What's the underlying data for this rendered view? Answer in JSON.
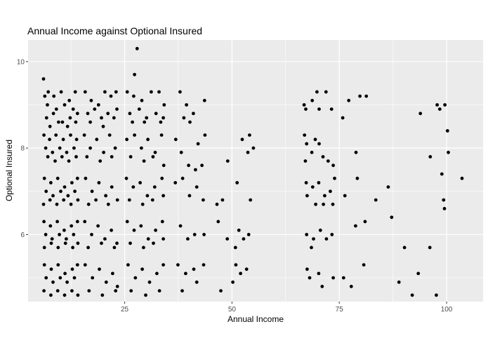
{
  "chart_data": {
    "type": "scatter",
    "title": "Annual Income against Optional Insured",
    "xlabel": "Annual Income",
    "ylabel": "Optional Insured",
    "xlim": [
      2.5,
      108.5
    ],
    "ylim": [
      4.45,
      10.5
    ],
    "x_ticks": [
      25,
      50,
      75,
      100
    ],
    "y_ticks": [
      6,
      8,
      10
    ],
    "grid": true,
    "colors": {
      "panel": "#ebebeb",
      "grid_major": "#ffffff",
      "points": "#000000",
      "text": "#000000",
      "ticks": "#4d4d4d"
    },
    "points": [
      [
        6.1,
        9.6
      ],
      [
        6.4,
        9.2
      ],
      [
        7.2,
        9.3
      ],
      [
        8.5,
        9.2
      ],
      [
        10.2,
        9.3
      ],
      [
        12.1,
        9.1
      ],
      [
        13.5,
        9.3
      ],
      [
        7.0,
        9.0
      ],
      [
        9.1,
        8.9
      ],
      [
        11.0,
        9.0
      ],
      [
        13.0,
        8.9
      ],
      [
        6.8,
        8.7
      ],
      [
        8.4,
        8.8
      ],
      [
        10.5,
        8.6
      ],
      [
        12.3,
        8.7
      ],
      [
        14.0,
        8.8
      ],
      [
        7.6,
        8.5
      ],
      [
        9.6,
        8.6
      ],
      [
        11.7,
        8.5
      ],
      [
        13.6,
        8.6
      ],
      [
        15.8,
        9.3
      ],
      [
        17.2,
        9.1
      ],
      [
        18.9,
        9.0
      ],
      [
        20.4,
        9.3
      ],
      [
        21.8,
        9.2
      ],
      [
        23.0,
        9.3
      ],
      [
        16.4,
        8.8
      ],
      [
        18.0,
        8.9
      ],
      [
        19.6,
        8.7
      ],
      [
        21.1,
        8.8
      ],
      [
        22.5,
        8.7
      ],
      [
        17.0,
        8.6
      ],
      [
        20.0,
        8.5
      ],
      [
        23.2,
        8.9
      ],
      [
        25.6,
        9.3
      ],
      [
        27.1,
        9.2
      ],
      [
        29.0,
        9.1
      ],
      [
        31.2,
        9.3
      ],
      [
        33.0,
        9.3
      ],
      [
        34.2,
        9.0
      ],
      [
        26.2,
        8.8
      ],
      [
        28.4,
        8.9
      ],
      [
        30.1,
        8.7
      ],
      [
        32.3,
        8.8
      ],
      [
        34.0,
        8.7
      ],
      [
        27.3,
        9.7
      ],
      [
        27.9,
        10.3
      ],
      [
        26.8,
        8.6
      ],
      [
        29.6,
        8.6
      ],
      [
        33.4,
        8.6
      ],
      [
        37.9,
        9.3
      ],
      [
        39.4,
        9.0
      ],
      [
        41.0,
        8.8
      ],
      [
        43.6,
        9.1
      ],
      [
        38.8,
        8.7
      ],
      [
        40.2,
        8.6
      ],
      [
        6.2,
        8.3
      ],
      [
        7.5,
        8.2
      ],
      [
        9.0,
        8.3
      ],
      [
        10.7,
        8.2
      ],
      [
        12.4,
        8.3
      ],
      [
        13.8,
        8.2
      ],
      [
        6.6,
        8.0
      ],
      [
        8.2,
        7.9
      ],
      [
        9.9,
        8.0
      ],
      [
        11.5,
        7.9
      ],
      [
        13.2,
        8.0
      ],
      [
        7.1,
        7.8
      ],
      [
        8.8,
        7.7
      ],
      [
        10.4,
        7.8
      ],
      [
        12.0,
        7.7
      ],
      [
        13.7,
        7.8
      ],
      [
        15.6,
        8.3
      ],
      [
        17.0,
        8.0
      ],
      [
        18.5,
        8.2
      ],
      [
        20.1,
        7.9
      ],
      [
        21.5,
        8.3
      ],
      [
        22.8,
        8.0
      ],
      [
        16.2,
        7.8
      ],
      [
        19.3,
        7.7
      ],
      [
        22.0,
        7.8
      ],
      [
        25.5,
        8.2
      ],
      [
        27.3,
        8.3
      ],
      [
        28.9,
        8.0
      ],
      [
        30.4,
        8.2
      ],
      [
        32.1,
        7.9
      ],
      [
        33.6,
        8.3
      ],
      [
        26.4,
        7.8
      ],
      [
        29.5,
        7.7
      ],
      [
        31.6,
        7.8
      ],
      [
        34.1,
        7.6
      ],
      [
        36.9,
        8.2
      ],
      [
        38.2,
        7.9
      ],
      [
        39.9,
        7.6
      ],
      [
        42.1,
        8.1
      ],
      [
        43.7,
        8.3
      ],
      [
        41.5,
        7.5
      ],
      [
        43.0,
        7.6
      ],
      [
        49.0,
        7.7
      ],
      [
        52.4,
        8.2
      ],
      [
        54.1,
        8.3
      ],
      [
        55.0,
        8.0
      ],
      [
        53.7,
        7.9
      ],
      [
        6.3,
        7.3
      ],
      [
        7.8,
        7.2
      ],
      [
        9.4,
        7.3
      ],
      [
        11.0,
        7.1
      ],
      [
        12.7,
        7.2
      ],
      [
        14.0,
        7.3
      ],
      [
        6.7,
        7.0
      ],
      [
        8.3,
        6.9
      ],
      [
        10.1,
        7.0
      ],
      [
        11.8,
        6.9
      ],
      [
        13.4,
        7.0
      ],
      [
        6.1,
        6.7
      ],
      [
        7.6,
        6.8
      ],
      [
        9.2,
        6.7
      ],
      [
        10.8,
        6.8
      ],
      [
        12.5,
        6.7
      ],
      [
        14.1,
        6.8
      ],
      [
        15.9,
        7.3
      ],
      [
        17.4,
        7.0
      ],
      [
        19.0,
        7.2
      ],
      [
        20.6,
        6.9
      ],
      [
        22.0,
        7.1
      ],
      [
        23.3,
        6.8
      ],
      [
        16.6,
        6.7
      ],
      [
        18.3,
        6.8
      ],
      [
        21.2,
        6.7
      ],
      [
        25.4,
        7.3
      ],
      [
        27.0,
        7.1
      ],
      [
        28.6,
        7.2
      ],
      [
        30.3,
        6.9
      ],
      [
        32.0,
        7.1
      ],
      [
        33.7,
        7.3
      ],
      [
        26.1,
        6.8
      ],
      [
        29.2,
        6.7
      ],
      [
        31.5,
        6.8
      ],
      [
        34.0,
        6.9
      ],
      [
        36.8,
        7.2
      ],
      [
        38.5,
        7.3
      ],
      [
        40.1,
        6.9
      ],
      [
        41.8,
        7.1
      ],
      [
        43.3,
        6.8
      ],
      [
        46.5,
        6.7
      ],
      [
        47.8,
        6.8
      ],
      [
        51.2,
        7.2
      ],
      [
        54.3,
        6.8
      ],
      [
        6.2,
        6.3
      ],
      [
        7.7,
        6.2
      ],
      [
        9.3,
        6.3
      ],
      [
        10.9,
        6.1
      ],
      [
        12.6,
        6.2
      ],
      [
        14.0,
        6.3
      ],
      [
        6.6,
        6.0
      ],
      [
        8.1,
        5.9
      ],
      [
        9.8,
        6.0
      ],
      [
        11.4,
        5.9
      ],
      [
        13.1,
        6.0
      ],
      [
        6.3,
        5.7
      ],
      [
        7.9,
        5.8
      ],
      [
        9.5,
        5.7
      ],
      [
        11.2,
        5.8
      ],
      [
        12.9,
        5.7
      ],
      [
        14.1,
        5.8
      ],
      [
        15.7,
        6.3
      ],
      [
        17.3,
        6.0
      ],
      [
        18.8,
        6.2
      ],
      [
        20.4,
        5.9
      ],
      [
        21.9,
        6.1
      ],
      [
        23.2,
        5.8
      ],
      [
        16.5,
        5.7
      ],
      [
        19.6,
        5.8
      ],
      [
        22.6,
        5.7
      ],
      [
        25.6,
        6.3
      ],
      [
        27.2,
        6.1
      ],
      [
        28.8,
        6.2
      ],
      [
        30.5,
        5.9
      ],
      [
        32.2,
        6.1
      ],
      [
        33.8,
        6.3
      ],
      [
        26.3,
        5.8
      ],
      [
        29.4,
        5.7
      ],
      [
        31.7,
        5.8
      ],
      [
        34.0,
        5.9
      ],
      [
        38.0,
        6.2
      ],
      [
        39.7,
        5.9
      ],
      [
        41.3,
        6.0
      ],
      [
        43.5,
        6.0
      ],
      [
        46.8,
        6.3
      ],
      [
        48.9,
        5.9
      ],
      [
        50.8,
        5.7
      ],
      [
        51.6,
        6.1
      ],
      [
        52.7,
        5.9
      ],
      [
        53.9,
        6.0
      ],
      [
        6.3,
        5.3
      ],
      [
        7.9,
        5.2
      ],
      [
        9.5,
        5.3
      ],
      [
        11.1,
        5.1
      ],
      [
        12.8,
        5.2
      ],
      [
        14.0,
        5.3
      ],
      [
        6.7,
        5.0
      ],
      [
        8.3,
        4.9
      ],
      [
        10.0,
        5.0
      ],
      [
        11.6,
        4.9
      ],
      [
        13.3,
        5.0
      ],
      [
        6.2,
        4.7
      ],
      [
        7.8,
        4.6
      ],
      [
        9.4,
        4.7
      ],
      [
        11.0,
        4.6
      ],
      [
        12.7,
        4.7
      ],
      [
        14.1,
        4.6
      ],
      [
        15.8,
        5.3
      ],
      [
        17.5,
        5.0
      ],
      [
        19.1,
        5.2
      ],
      [
        20.7,
        4.9
      ],
      [
        22.2,
        5.1
      ],
      [
        23.3,
        4.8
      ],
      [
        16.7,
        4.7
      ],
      [
        19.8,
        4.6
      ],
      [
        22.9,
        4.7
      ],
      [
        25.8,
        5.3
      ],
      [
        27.5,
        5.0
      ],
      [
        29.1,
        5.2
      ],
      [
        30.8,
        4.9
      ],
      [
        32.5,
        5.1
      ],
      [
        34.0,
        5.3
      ],
      [
        26.5,
        4.7
      ],
      [
        29.9,
        4.6
      ],
      [
        33.1,
        4.7
      ],
      [
        37.4,
        5.3
      ],
      [
        39.2,
        5.1
      ],
      [
        41.1,
        5.2
      ],
      [
        43.4,
        5.3
      ],
      [
        38.4,
        4.7
      ],
      [
        41.8,
        4.9
      ],
      [
        47.4,
        4.7
      ],
      [
        50.9,
        5.3
      ],
      [
        53.4,
        5.2
      ],
      [
        52.0,
        5.1
      ],
      [
        50.2,
        4.9
      ],
      [
        66.8,
        9.0
      ],
      [
        67.2,
        8.9
      ],
      [
        68.7,
        9.1
      ],
      [
        69.8,
        9.3
      ],
      [
        70.3,
        8.9
      ],
      [
        71.9,
        9.3
      ],
      [
        73.2,
        8.9
      ],
      [
        75.8,
        8.7
      ],
      [
        77.2,
        9.1
      ],
      [
        79.8,
        9.2
      ],
      [
        81.3,
        9.2
      ],
      [
        93.9,
        8.8
      ],
      [
        97.8,
        9.0
      ],
      [
        98.4,
        8.9
      ],
      [
        99.6,
        9.0
      ],
      [
        66.9,
        8.3
      ],
      [
        67.4,
        8.1
      ],
      [
        68.6,
        7.9
      ],
      [
        69.4,
        8.2
      ],
      [
        70.3,
        8.1
      ],
      [
        71.2,
        7.8
      ],
      [
        72.4,
        7.7
      ],
      [
        73.6,
        7.6
      ],
      [
        67.1,
        7.7
      ],
      [
        78.9,
        7.9
      ],
      [
        100.2,
        8.4
      ],
      [
        100.4,
        7.9
      ],
      [
        96.2,
        7.8
      ],
      [
        67.3,
        7.2
      ],
      [
        68.8,
        7.1
      ],
      [
        70.2,
        7.2
      ],
      [
        71.6,
        6.9
      ],
      [
        72.9,
        7.0
      ],
      [
        73.9,
        7.3
      ],
      [
        67.5,
        6.9
      ],
      [
        69.5,
        6.7
      ],
      [
        71.3,
        6.7
      ],
      [
        73.5,
        6.7
      ],
      [
        76.3,
        6.9
      ],
      [
        79.2,
        7.3
      ],
      [
        83.5,
        6.8
      ],
      [
        86.4,
        7.1
      ],
      [
        98.9,
        7.4
      ],
      [
        99.3,
        6.8
      ],
      [
        99.5,
        6.6
      ],
      [
        103.6,
        7.3
      ],
      [
        67.4,
        6.0
      ],
      [
        69.0,
        5.9
      ],
      [
        70.6,
        6.1
      ],
      [
        72.0,
        5.9
      ],
      [
        73.3,
        6.0
      ],
      [
        68.5,
        5.7
      ],
      [
        78.8,
        6.2
      ],
      [
        81.0,
        6.3
      ],
      [
        87.2,
        6.4
      ],
      [
        90.2,
        5.7
      ],
      [
        96.1,
        5.7
      ],
      [
        67.5,
        5.2
      ],
      [
        68.1,
        5.0
      ],
      [
        70.2,
        5.1
      ],
      [
        71.0,
        4.8
      ],
      [
        73.6,
        5.0
      ],
      [
        76.0,
        5.0
      ],
      [
        77.8,
        4.8
      ],
      [
        80.7,
        5.3
      ],
      [
        88.9,
        4.9
      ],
      [
        92.0,
        4.6
      ],
      [
        93.4,
        5.1
      ],
      [
        97.6,
        4.6
      ]
    ]
  }
}
